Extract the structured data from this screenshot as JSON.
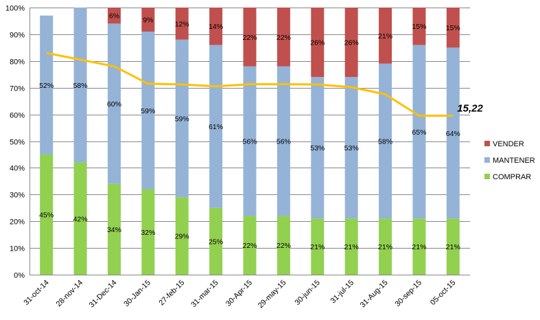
{
  "chart_data": {
    "type": "bar",
    "stacked": true,
    "categories": [
      "31-oct-14",
      "28-nov-14",
      "31-Dec-14",
      "30-Jan-15",
      "27-feb-15",
      "31-mar-15",
      "30-Apr-15",
      "29-may-15",
      "30-jun-15",
      "31-jul-15",
      "31-Aug-15",
      "30-sep-15",
      "05-oct-15"
    ],
    "series": [
      {
        "name": "COMPRAR",
        "color": "#92d050",
        "values": [
          45,
          42,
          34,
          32,
          29,
          25,
          22,
          22,
          21,
          21,
          21,
          21,
          21
        ],
        "labels": [
          "45%",
          "42%",
          "34%",
          "32%",
          "29%",
          "25%",
          "22%",
          "22%",
          "21%",
          "21%",
          "21%",
          "21%",
          "21%"
        ]
      },
      {
        "name": "MANTENER",
        "color": "#95b3d7",
        "values": [
          52,
          58,
          60,
          59,
          59,
          61,
          56,
          56,
          53,
          53,
          58,
          65,
          64
        ],
        "labels": [
          "52%",
          "58%",
          "60%",
          "59%",
          "59%",
          "61%",
          "56%",
          "56%",
          "53%",
          "53%",
          "58%",
          "65%",
          "64%"
        ]
      },
      {
        "name": "VENDER",
        "color": "#c0504d",
        "values": [
          0,
          0,
          6,
          9,
          12,
          14,
          22,
          22,
          26,
          26,
          21,
          15,
          15
        ],
        "labels": [
          "",
          "",
          "6%",
          "9%",
          "12%",
          "14%",
          "22%",
          "22%",
          "26%",
          "26%",
          "21%",
          "15%",
          "15%"
        ]
      }
    ],
    "line": {
      "color": "#ffc000",
      "values": [
        83,
        80.5,
        78,
        71.5,
        71.2,
        70.5,
        71.3,
        71.3,
        71.2,
        70.2,
        67.5,
        59.5,
        59.5
      ]
    },
    "annotation": "15,22",
    "yticks": [
      "0%",
      "10%",
      "20%",
      "30%",
      "40%",
      "50%",
      "60%",
      "70%",
      "80%",
      "90%",
      "100%"
    ],
    "ylim": [
      0,
      100
    ],
    "grid": true,
    "legend": {
      "position": "right",
      "order": [
        "VENDER",
        "MANTENER",
        "COMPRAR"
      ]
    }
  }
}
